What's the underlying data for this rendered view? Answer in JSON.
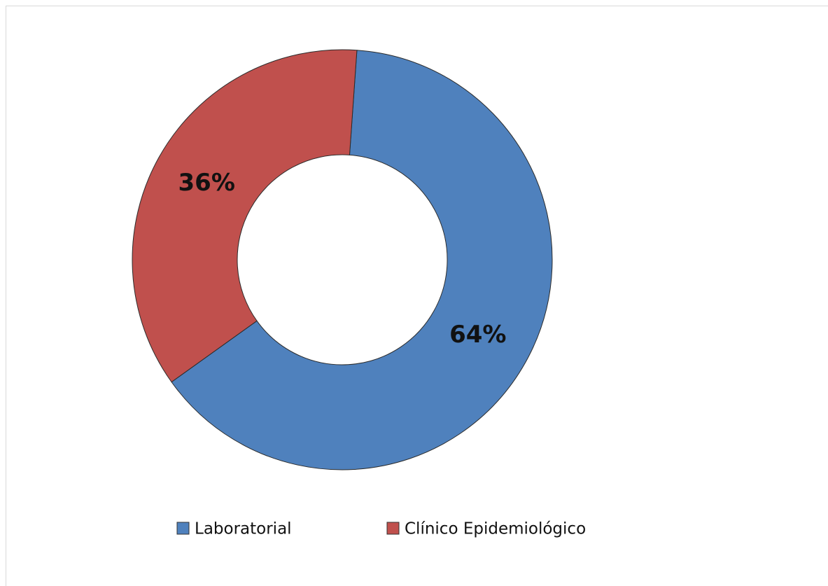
{
  "chart_data": {
    "type": "donut",
    "categories": [
      "Laboratorial",
      "Clínico Epidemiológico"
    ],
    "values": [
      64,
      36
    ],
    "value_labels": [
      "64%",
      "36%"
    ],
    "colors": [
      "#4f81bd",
      "#c0504d"
    ],
    "legend": "bottom"
  }
}
